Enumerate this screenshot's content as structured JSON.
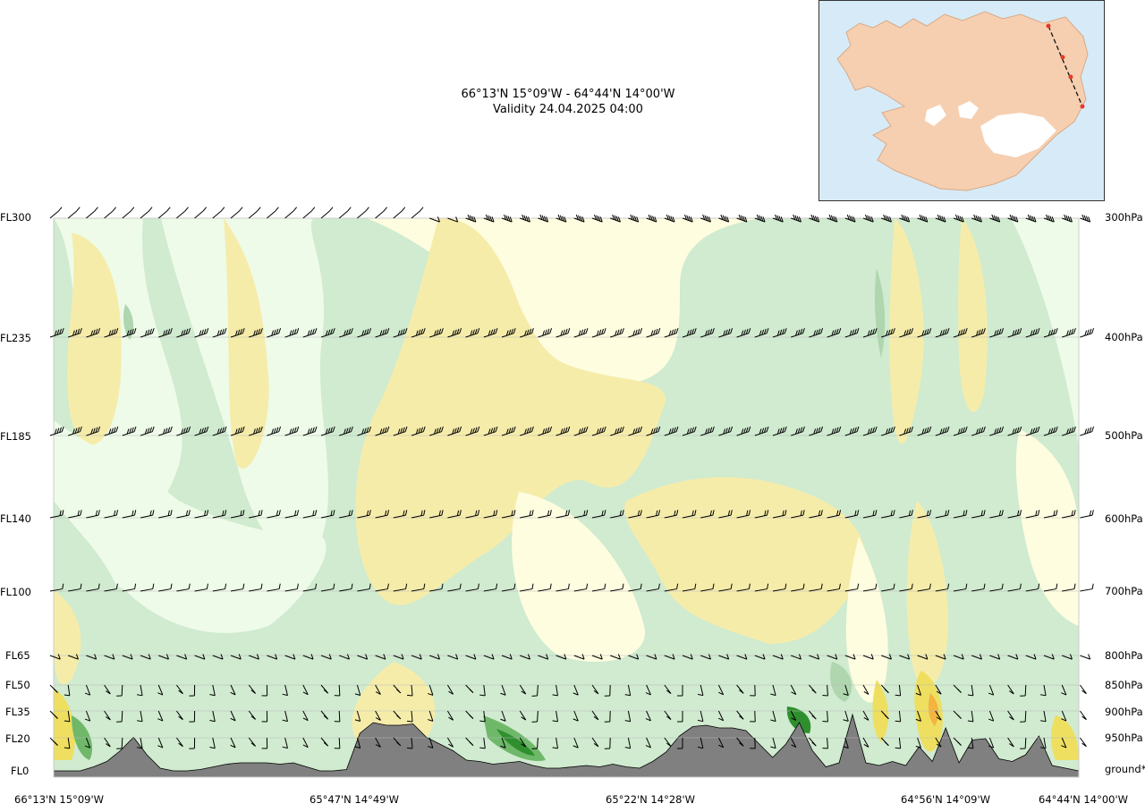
{
  "header": {
    "route": "66°13'N 15°09'W - 64°44'N 14°00'W",
    "validity": "Validity 24.04.2025 04:00"
  },
  "inset_map": {
    "route_color": "#e53a2a",
    "land_color": "#f6cfb0",
    "glacier_color": "#ffffff",
    "sea_color": "#d6ebf7"
  },
  "chart_data": {
    "type": "heatmap",
    "title": "66°13'N 15°09'W - 64°44'N 14°00'W",
    "subtitle": "Validity 24.04.2025 04:00",
    "y_left_ticks": [
      "FL300",
      "FL235",
      "FL185",
      "FL140",
      "FL100",
      "FL65",
      "FL50",
      "FL35",
      "FL20",
      "FL0"
    ],
    "y_right_ticks": [
      "300hPa",
      "400hPa",
      "500hPa",
      "600hPa",
      "700hPa",
      "800hPa",
      "850hPa",
      "900hPa",
      "950hPa",
      "ground*"
    ],
    "x_ticks": [
      "66°13'N 15°09'W",
      "65°47'N 14°49'W",
      "65°22'N 14°28'W",
      "64°56'N 14°09'W",
      "64°44'N 14°00'W"
    ],
    "palette": {
      "very_pale_green": "#eefbe9",
      "light_green": "#d0ebcf",
      "mid_green": "#afd6ae",
      "dark_green": "#6fb86a",
      "deep_green": "#2f8f2f",
      "pale_yellow": "#fffde0",
      "light_yellow": "#f6ecaa",
      "yellow": "#eedf60",
      "orange": "#f3b441",
      "terrain": "#808080"
    },
    "terrain_profile_ft": [
      0,
      0,
      0,
      300,
      700,
      1500,
      2500,
      1200,
      200,
      0,
      0,
      100,
      300,
      500,
      600,
      600,
      600,
      500,
      600,
      300,
      0,
      0,
      100,
      2800,
      3600,
      3400,
      3400,
      3500,
      2500,
      2000,
      1500,
      800,
      700,
      500,
      600,
      700,
      400,
      200,
      200,
      300,
      400,
      300,
      500,
      300,
      200,
      700,
      1400,
      2600,
      3300,
      3400,
      3200,
      3200,
      3000,
      2000,
      1000,
      2000,
      3600,
      1500,
      300,
      600,
      4200,
      600,
      400,
      700,
      400,
      1800,
      700,
      3200,
      600,
      2300,
      2400,
      900,
      700,
      1200,
      2600,
      400,
      200,
      0
    ],
    "wind_levels": [
      "300hPa",
      "400hPa",
      "500hPa",
      "600hPa",
      "700hPa",
      "800hPa",
      "850hPa",
      "900hPa",
      "950hPa"
    ]
  }
}
